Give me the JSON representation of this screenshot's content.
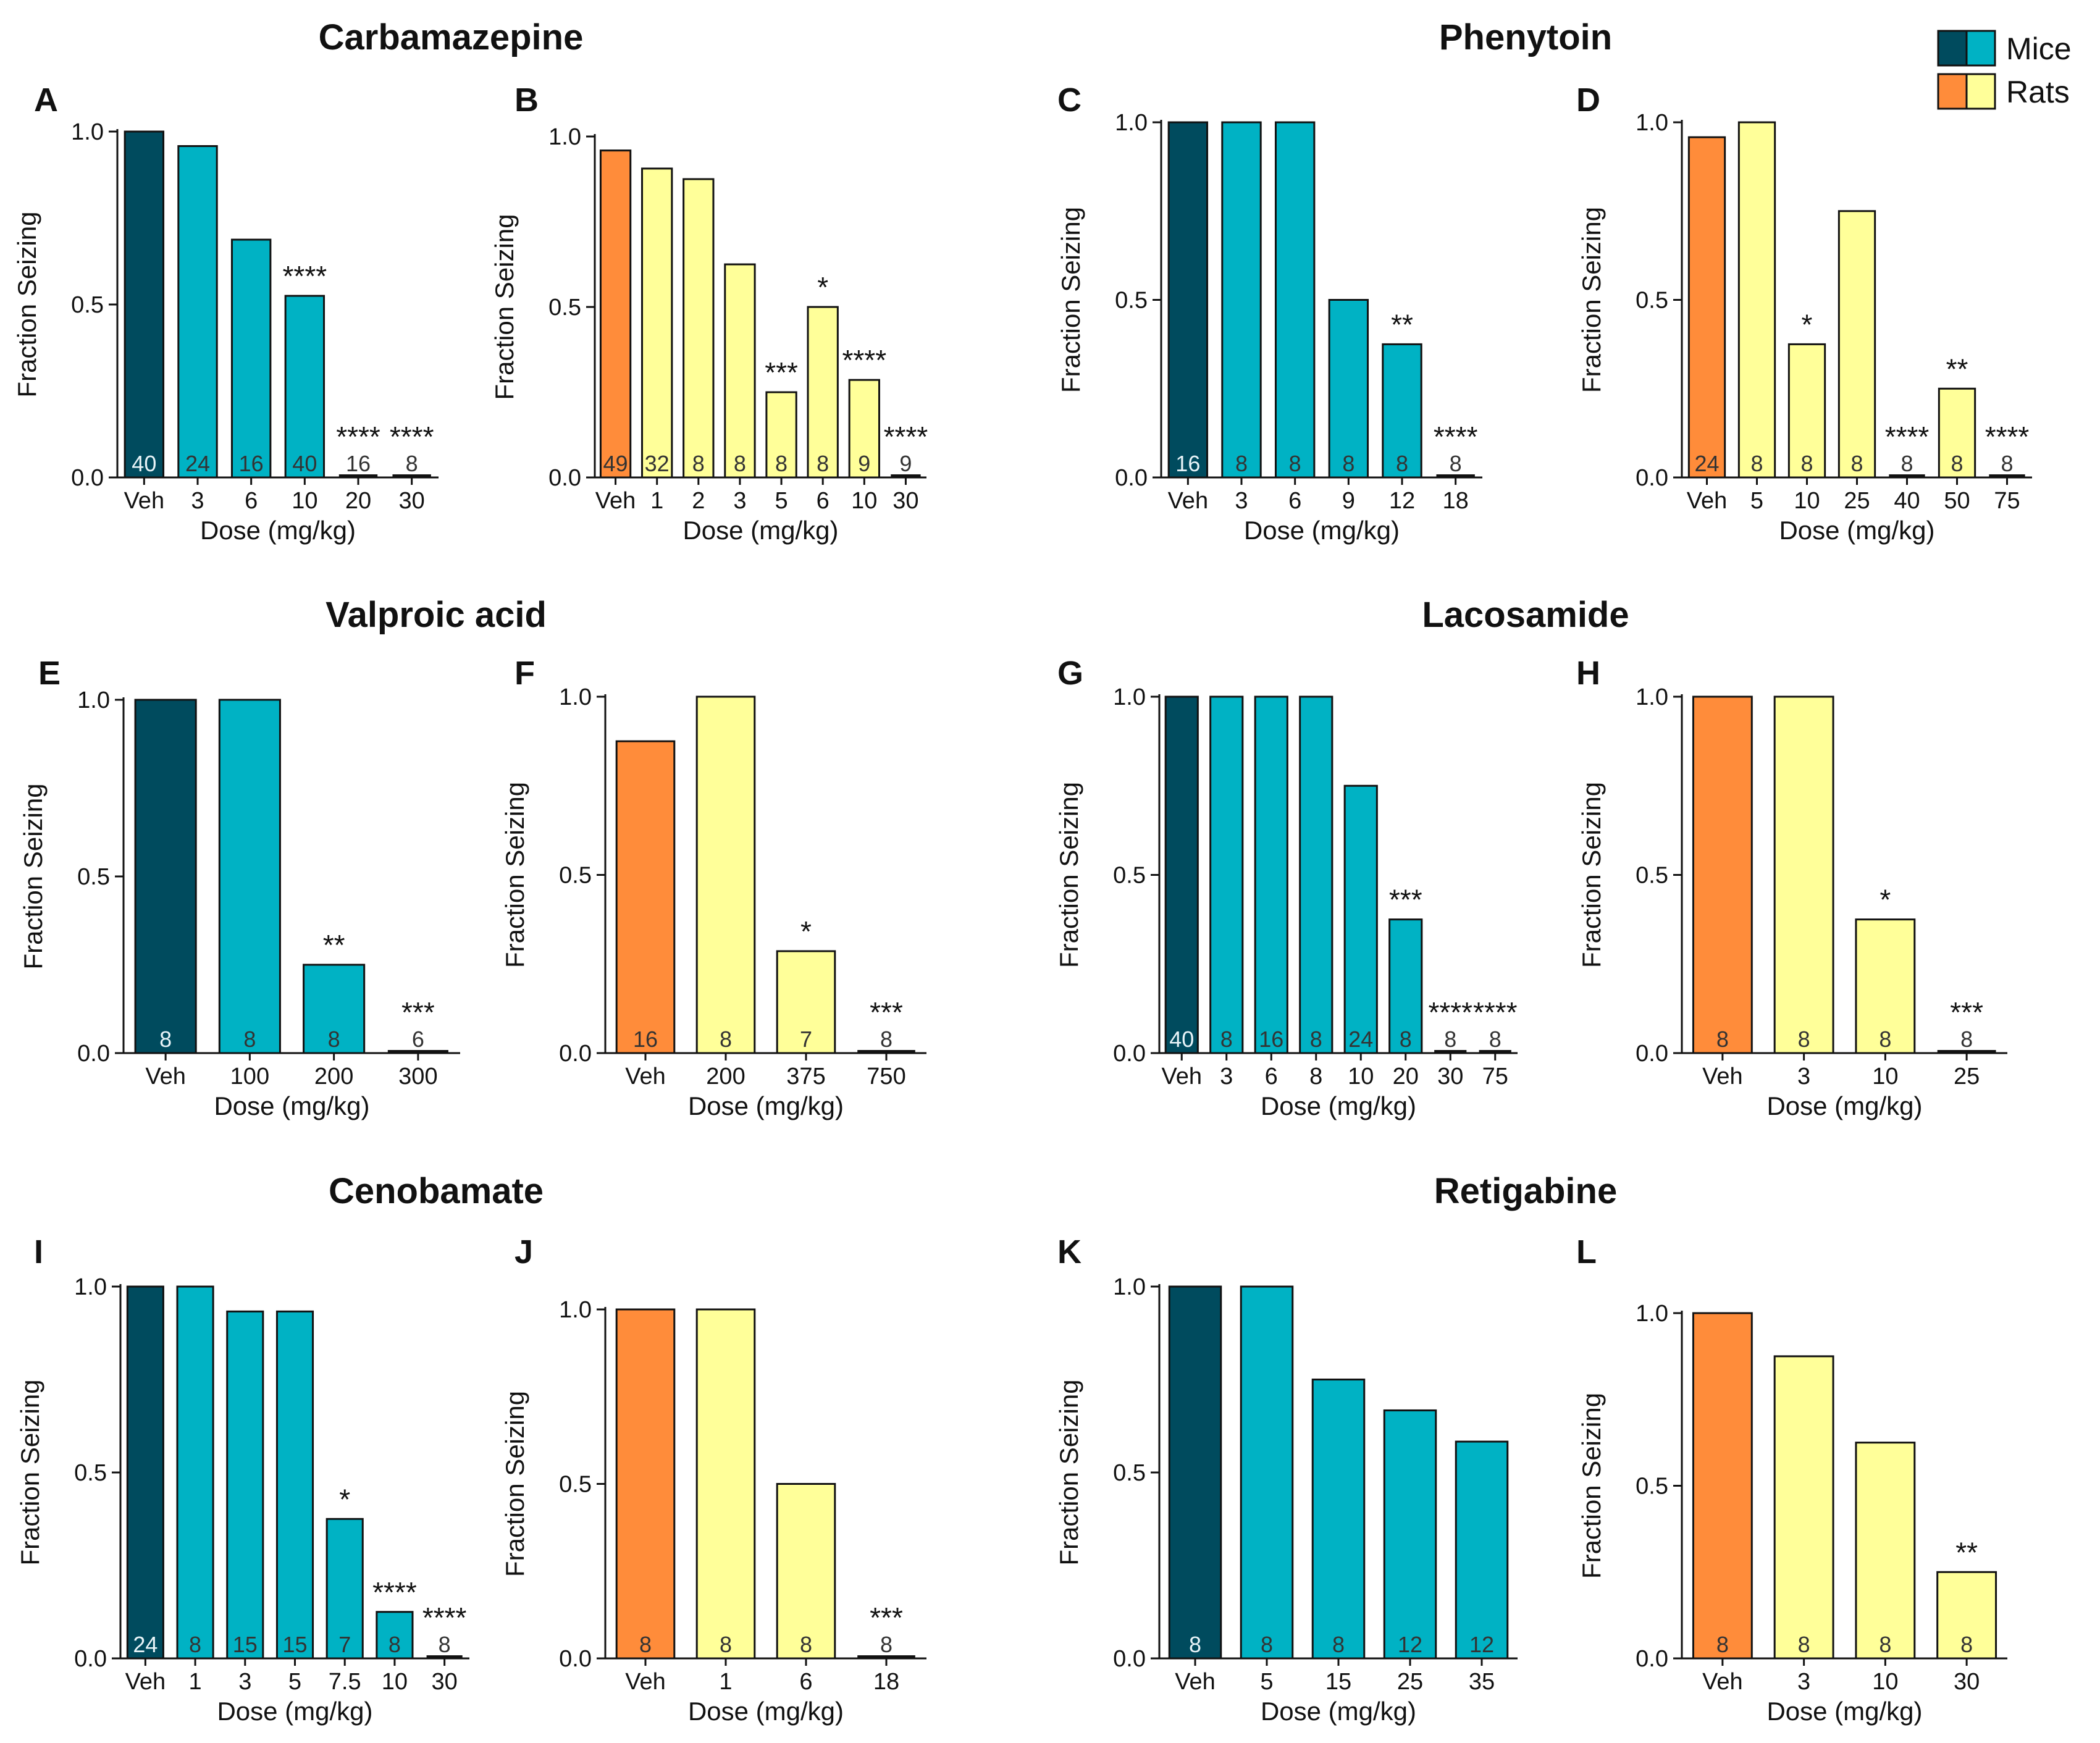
{
  "colors": {
    "mice_veh": "#004b5e",
    "mice_dose": "#00b2c4",
    "rats_veh": "#ff8c3a",
    "rats_dose": "#ffff99",
    "axis": "#111111"
  },
  "legend": {
    "mice": "Mice",
    "rats": "Rats"
  },
  "drug_titles": [
    "Carbamazepine",
    "Phenytoin",
    "Valproic acid",
    "Lacosamide",
    "Cenobamate",
    "Retigabine"
  ],
  "chart_data": [
    {
      "panel": "A",
      "type": "bar",
      "species": "mice",
      "title": "Carbamazepine",
      "ylabel": "Fraction Seizing",
      "xlabel": "Dose (mg/kg)",
      "ylim": [
        0,
        1
      ],
      "yticks": [
        "0.0",
        "0.5",
        "1.0"
      ],
      "categories": [
        "Veh",
        "3",
        "6",
        "10",
        "20",
        "30"
      ],
      "values": [
        1.0,
        0.958,
        0.6875,
        0.525,
        0.0,
        0.0
      ],
      "n": [
        "40",
        "24",
        "16",
        "40",
        "16",
        "8"
      ],
      "sig": [
        "",
        "",
        "",
        "****",
        "****",
        "****"
      ]
    },
    {
      "panel": "B",
      "type": "bar",
      "species": "rats",
      "title": "Carbamazepine",
      "ylabel": "Fraction Seizing",
      "xlabel": "Dose (mg/kg)",
      "ylim": [
        0,
        1
      ],
      "yticks": [
        "0.0",
        "0.5",
        "1.0"
      ],
      "categories": [
        "Veh",
        "1",
        "2",
        "3",
        "5",
        "6",
        "10",
        "30"
      ],
      "values": [
        0.959,
        0.906,
        0.875,
        0.625,
        0.25,
        0.5,
        0.286,
        0.0
      ],
      "n": [
        "49",
        "32",
        "8",
        "8",
        "8",
        "8",
        "9",
        "9"
      ],
      "sig": [
        "",
        "",
        "",
        "",
        "***",
        "*",
        "****",
        "****"
      ]
    },
    {
      "panel": "C",
      "type": "bar",
      "species": "mice",
      "title": "Phenytoin",
      "ylabel": "Fraction Seizing",
      "xlabel": "Dose (mg/kg)",
      "ylim": [
        0,
        1
      ],
      "yticks": [
        "0.0",
        "0.5",
        "1.0"
      ],
      "categories": [
        "Veh",
        "3",
        "6",
        "9",
        "12",
        "18"
      ],
      "values": [
        1.0,
        1.0,
        1.0,
        0.5,
        0.375,
        0.0
      ],
      "n": [
        "16",
        "8",
        "8",
        "8",
        "8",
        "8"
      ],
      "sig": [
        "",
        "",
        "",
        "",
        "**",
        "****"
      ]
    },
    {
      "panel": "D",
      "type": "bar",
      "species": "rats",
      "title": "Phenytoin",
      "ylabel": "Fraction Seizing",
      "xlabel": "Dose (mg/kg)",
      "ylim": [
        0,
        1
      ],
      "yticks": [
        "0.0",
        "0.5",
        "1.0"
      ],
      "categories": [
        "Veh",
        "5",
        "10",
        "25",
        "40",
        "50",
        "75"
      ],
      "values": [
        0.958,
        1.0,
        0.375,
        0.75,
        0.0,
        0.25,
        0.0
      ],
      "n": [
        "24",
        "8",
        "8",
        "8",
        "8",
        "8",
        "8"
      ],
      "sig": [
        "",
        "",
        "*",
        "",
        "****",
        "**",
        "****"
      ]
    },
    {
      "panel": "E",
      "type": "bar",
      "species": "mice",
      "title": "Valproic acid",
      "ylabel": "Fraction Seizing",
      "xlabel": "Dose (mg/kg)",
      "ylim": [
        0,
        1
      ],
      "yticks": [
        "0.0",
        "0.5",
        "1.0"
      ],
      "categories": [
        "Veh",
        "100",
        "200",
        "300"
      ],
      "values": [
        1.0,
        1.0,
        0.25,
        0.0
      ],
      "n": [
        "8",
        "8",
        "8",
        "6"
      ],
      "sig": [
        "",
        "",
        "**",
        "***"
      ]
    },
    {
      "panel": "F",
      "type": "bar",
      "species": "rats",
      "title": "Valproic acid",
      "ylabel": "Fraction Seizing",
      "xlabel": "Dose (mg/kg)",
      "ylim": [
        0,
        1
      ],
      "yticks": [
        "0.0",
        "0.5",
        "1.0"
      ],
      "categories": [
        "Veh",
        "200",
        "375",
        "750"
      ],
      "values": [
        0.875,
        1.0,
        0.286,
        0.0
      ],
      "n": [
        "16",
        "8",
        "7",
        "8"
      ],
      "sig": [
        "",
        "",
        "*",
        "***"
      ]
    },
    {
      "panel": "G",
      "type": "bar",
      "species": "mice",
      "title": "Lacosamide",
      "ylabel": "Fraction Seizing",
      "xlabel": "Dose (mg/kg)",
      "ylim": [
        0,
        1
      ],
      "yticks": [
        "0.0",
        "0.5",
        "1.0"
      ],
      "categories": [
        "Veh",
        "3",
        "6",
        "8",
        "10",
        "20",
        "30",
        "75"
      ],
      "values": [
        1.0,
        1.0,
        1.0,
        1.0,
        0.75,
        0.375,
        0.0,
        0.0
      ],
      "n": [
        "40",
        "8",
        "16",
        "8",
        "24",
        "8",
        "8",
        "8"
      ],
      "sig": [
        "",
        "",
        "",
        "",
        "",
        "***",
        "****",
        "****"
      ]
    },
    {
      "panel": "H",
      "type": "bar",
      "species": "rats",
      "title": "Lacosamide",
      "ylabel": "Fraction Seizing",
      "xlabel": "Dose (mg/kg)",
      "ylim": [
        0,
        1
      ],
      "yticks": [
        "0.0",
        "0.5",
        "1.0"
      ],
      "categories": [
        "Veh",
        "3",
        "10",
        "25"
      ],
      "values": [
        1.0,
        1.0,
        0.375,
        0.0
      ],
      "n": [
        "8",
        "8",
        "8",
        "8"
      ],
      "sig": [
        "",
        "",
        "*",
        "***"
      ]
    },
    {
      "panel": "I",
      "type": "bar",
      "species": "mice",
      "title": "Cenobamate",
      "ylabel": "Fraction Seizing",
      "xlabel": "Dose (mg/kg)",
      "ylim": [
        0,
        1
      ],
      "yticks": [
        "0.0",
        "0.5",
        "1.0"
      ],
      "categories": [
        "Veh",
        "1",
        "3",
        "5",
        "7.5",
        "10",
        "30"
      ],
      "values": [
        1.0,
        1.0,
        0.933,
        0.933,
        0.375,
        0.125,
        0.0
      ],
      "n": [
        "24",
        "8",
        "15",
        "15",
        "7",
        "8",
        "8"
      ],
      "sig": [
        "",
        "",
        "",
        "",
        "*",
        "****",
        "****"
      ]
    },
    {
      "panel": "J",
      "type": "bar",
      "species": "rats",
      "title": "Cenobamate",
      "ylabel": "Fraction Seizing",
      "xlabel": "Dose (mg/kg)",
      "ylim": [
        0,
        1
      ],
      "yticks": [
        "0.0",
        "0.5",
        "1.0"
      ],
      "categories": [
        "Veh",
        "1",
        "6",
        "18"
      ],
      "values": [
        1.0,
        1.0,
        0.5,
        0.0
      ],
      "n": [
        "8",
        "8",
        "8",
        "8"
      ],
      "sig": [
        "",
        "",
        "",
        "***"
      ]
    },
    {
      "panel": "K",
      "type": "bar",
      "species": "mice",
      "title": "Retigabine",
      "ylabel": "Fraction Seizing",
      "xlabel": "Dose (mg/kg)",
      "ylim": [
        0,
        1
      ],
      "yticks": [
        "0.0",
        "0.5",
        "1.0"
      ],
      "categories": [
        "Veh",
        "5",
        "15",
        "25",
        "35"
      ],
      "values": [
        1.0,
        1.0,
        0.75,
        0.667,
        0.583
      ],
      "n": [
        "8",
        "8",
        "8",
        "12",
        "12"
      ],
      "sig": [
        "",
        "",
        "",
        "",
        ""
      ]
    },
    {
      "panel": "L",
      "type": "bar",
      "species": "rats",
      "title": "Retigabine",
      "ylabel": "Fraction Seizing",
      "xlabel": "Dose (mg/kg)",
      "ylim": [
        0,
        1
      ],
      "yticks": [
        "0.0",
        "0.5",
        "1.0"
      ],
      "categories": [
        "Veh",
        "3",
        "10",
        "30"
      ],
      "values": [
        1.0,
        0.875,
        0.625,
        0.25
      ],
      "n": [
        "8",
        "8",
        "8",
        "8"
      ],
      "sig": [
        "",
        "",
        "",
        "**"
      ]
    }
  ]
}
